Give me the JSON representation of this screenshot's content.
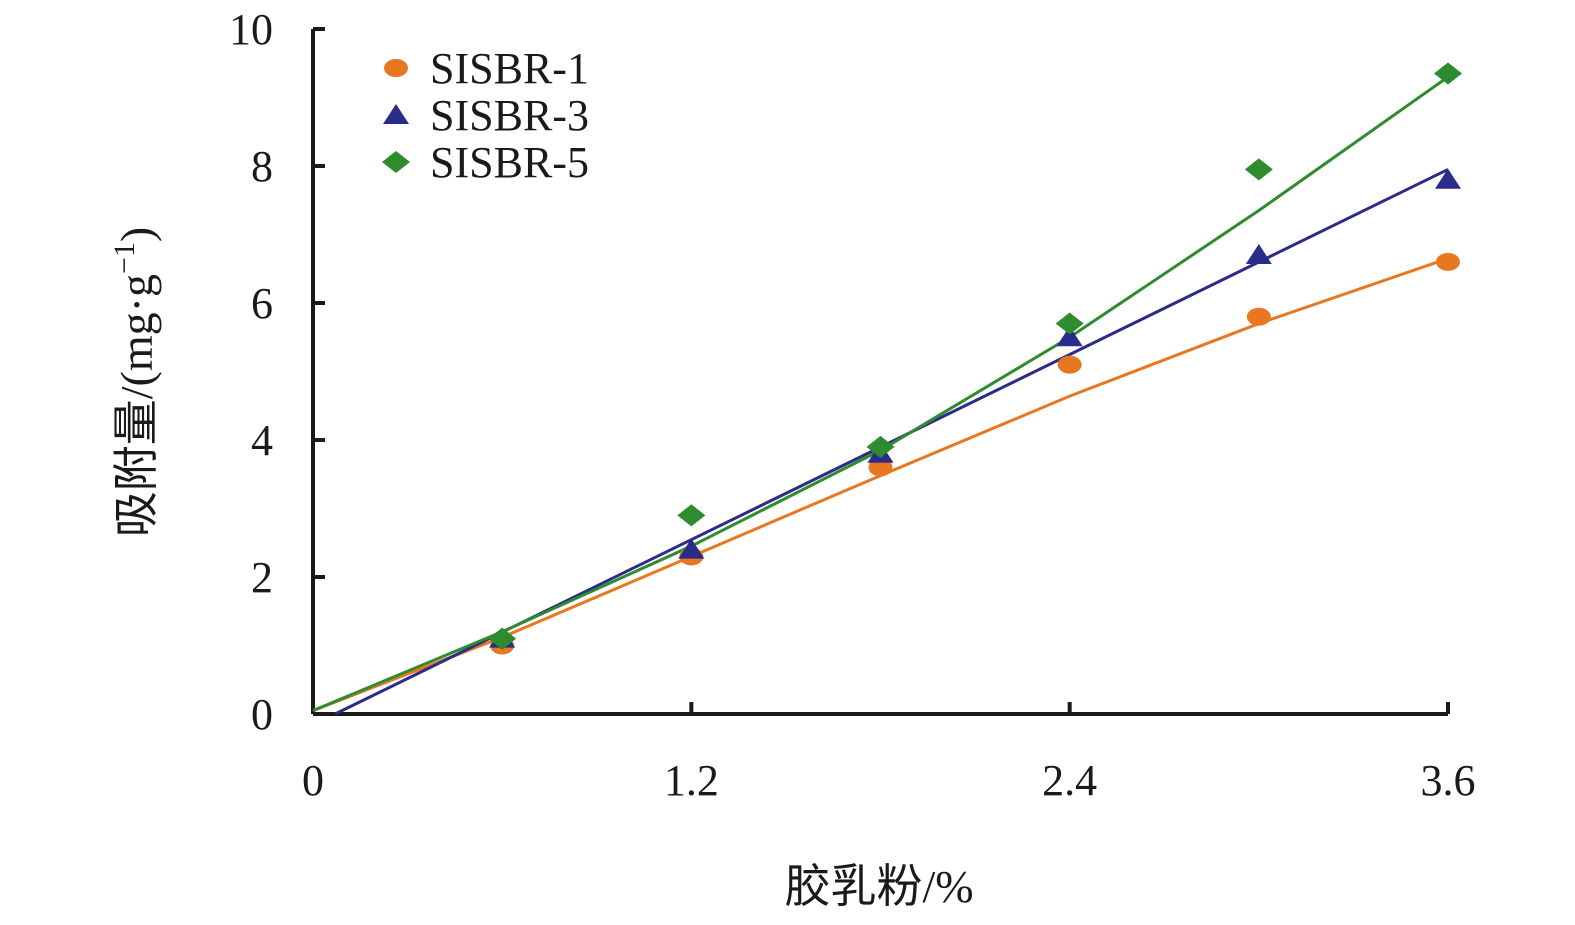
{
  "chart_data": {
    "type": "scatter",
    "title": "",
    "xlabel": "胶乳粉/%",
    "ylabel": "吸附量/(mg·g",
    "ylabel_superscript": "−1",
    "ylabel_close": ")",
    "xlim": [
      0,
      3.6
    ],
    "ylim": [
      0,
      10
    ],
    "x_ticks": [
      "0",
      "1.2",
      "2.4",
      "3.6"
    ],
    "y_ticks": [
      "0",
      "2",
      "4",
      "6",
      "8",
      "10"
    ],
    "grid": false,
    "legend_position": "top-left",
    "x": [
      0.6,
      1.2,
      1.8,
      2.4,
      3.0,
      3.6
    ],
    "series": [
      {
        "name": "SISBR-1",
        "marker": "circle",
        "color": "#e87722",
        "values": [
          1.0,
          2.3,
          3.6,
          5.1,
          5.8,
          6.6
        ],
        "fit": [
          [
            0,
            0.05
          ],
          [
            0.6,
            1.12
          ],
          [
            1.2,
            2.3
          ],
          [
            1.8,
            3.48
          ],
          [
            2.4,
            4.64
          ],
          [
            3.0,
            5.7
          ],
          [
            3.6,
            6.65
          ]
        ]
      },
      {
        "name": "SISBR-3",
        "marker": "triangle",
        "color": "#2b2b8a",
        "values": [
          1.1,
          2.4,
          3.8,
          5.5,
          6.7,
          7.8
        ],
        "fit": [
          [
            0.07,
            0
          ],
          [
            3.6,
            7.95
          ]
        ]
      },
      {
        "name": "SISBR-5",
        "marker": "diamond",
        "color": "#2e8b2e",
        "values": [
          1.1,
          2.9,
          3.9,
          5.7,
          7.95,
          9.35
        ],
        "fit": [
          [
            0,
            0.05
          ],
          [
            0.6,
            1.2
          ],
          [
            1.2,
            2.45
          ],
          [
            1.8,
            3.85
          ],
          [
            2.4,
            5.5
          ],
          [
            3.0,
            7.35
          ],
          [
            3.6,
            9.3
          ]
        ]
      }
    ]
  }
}
